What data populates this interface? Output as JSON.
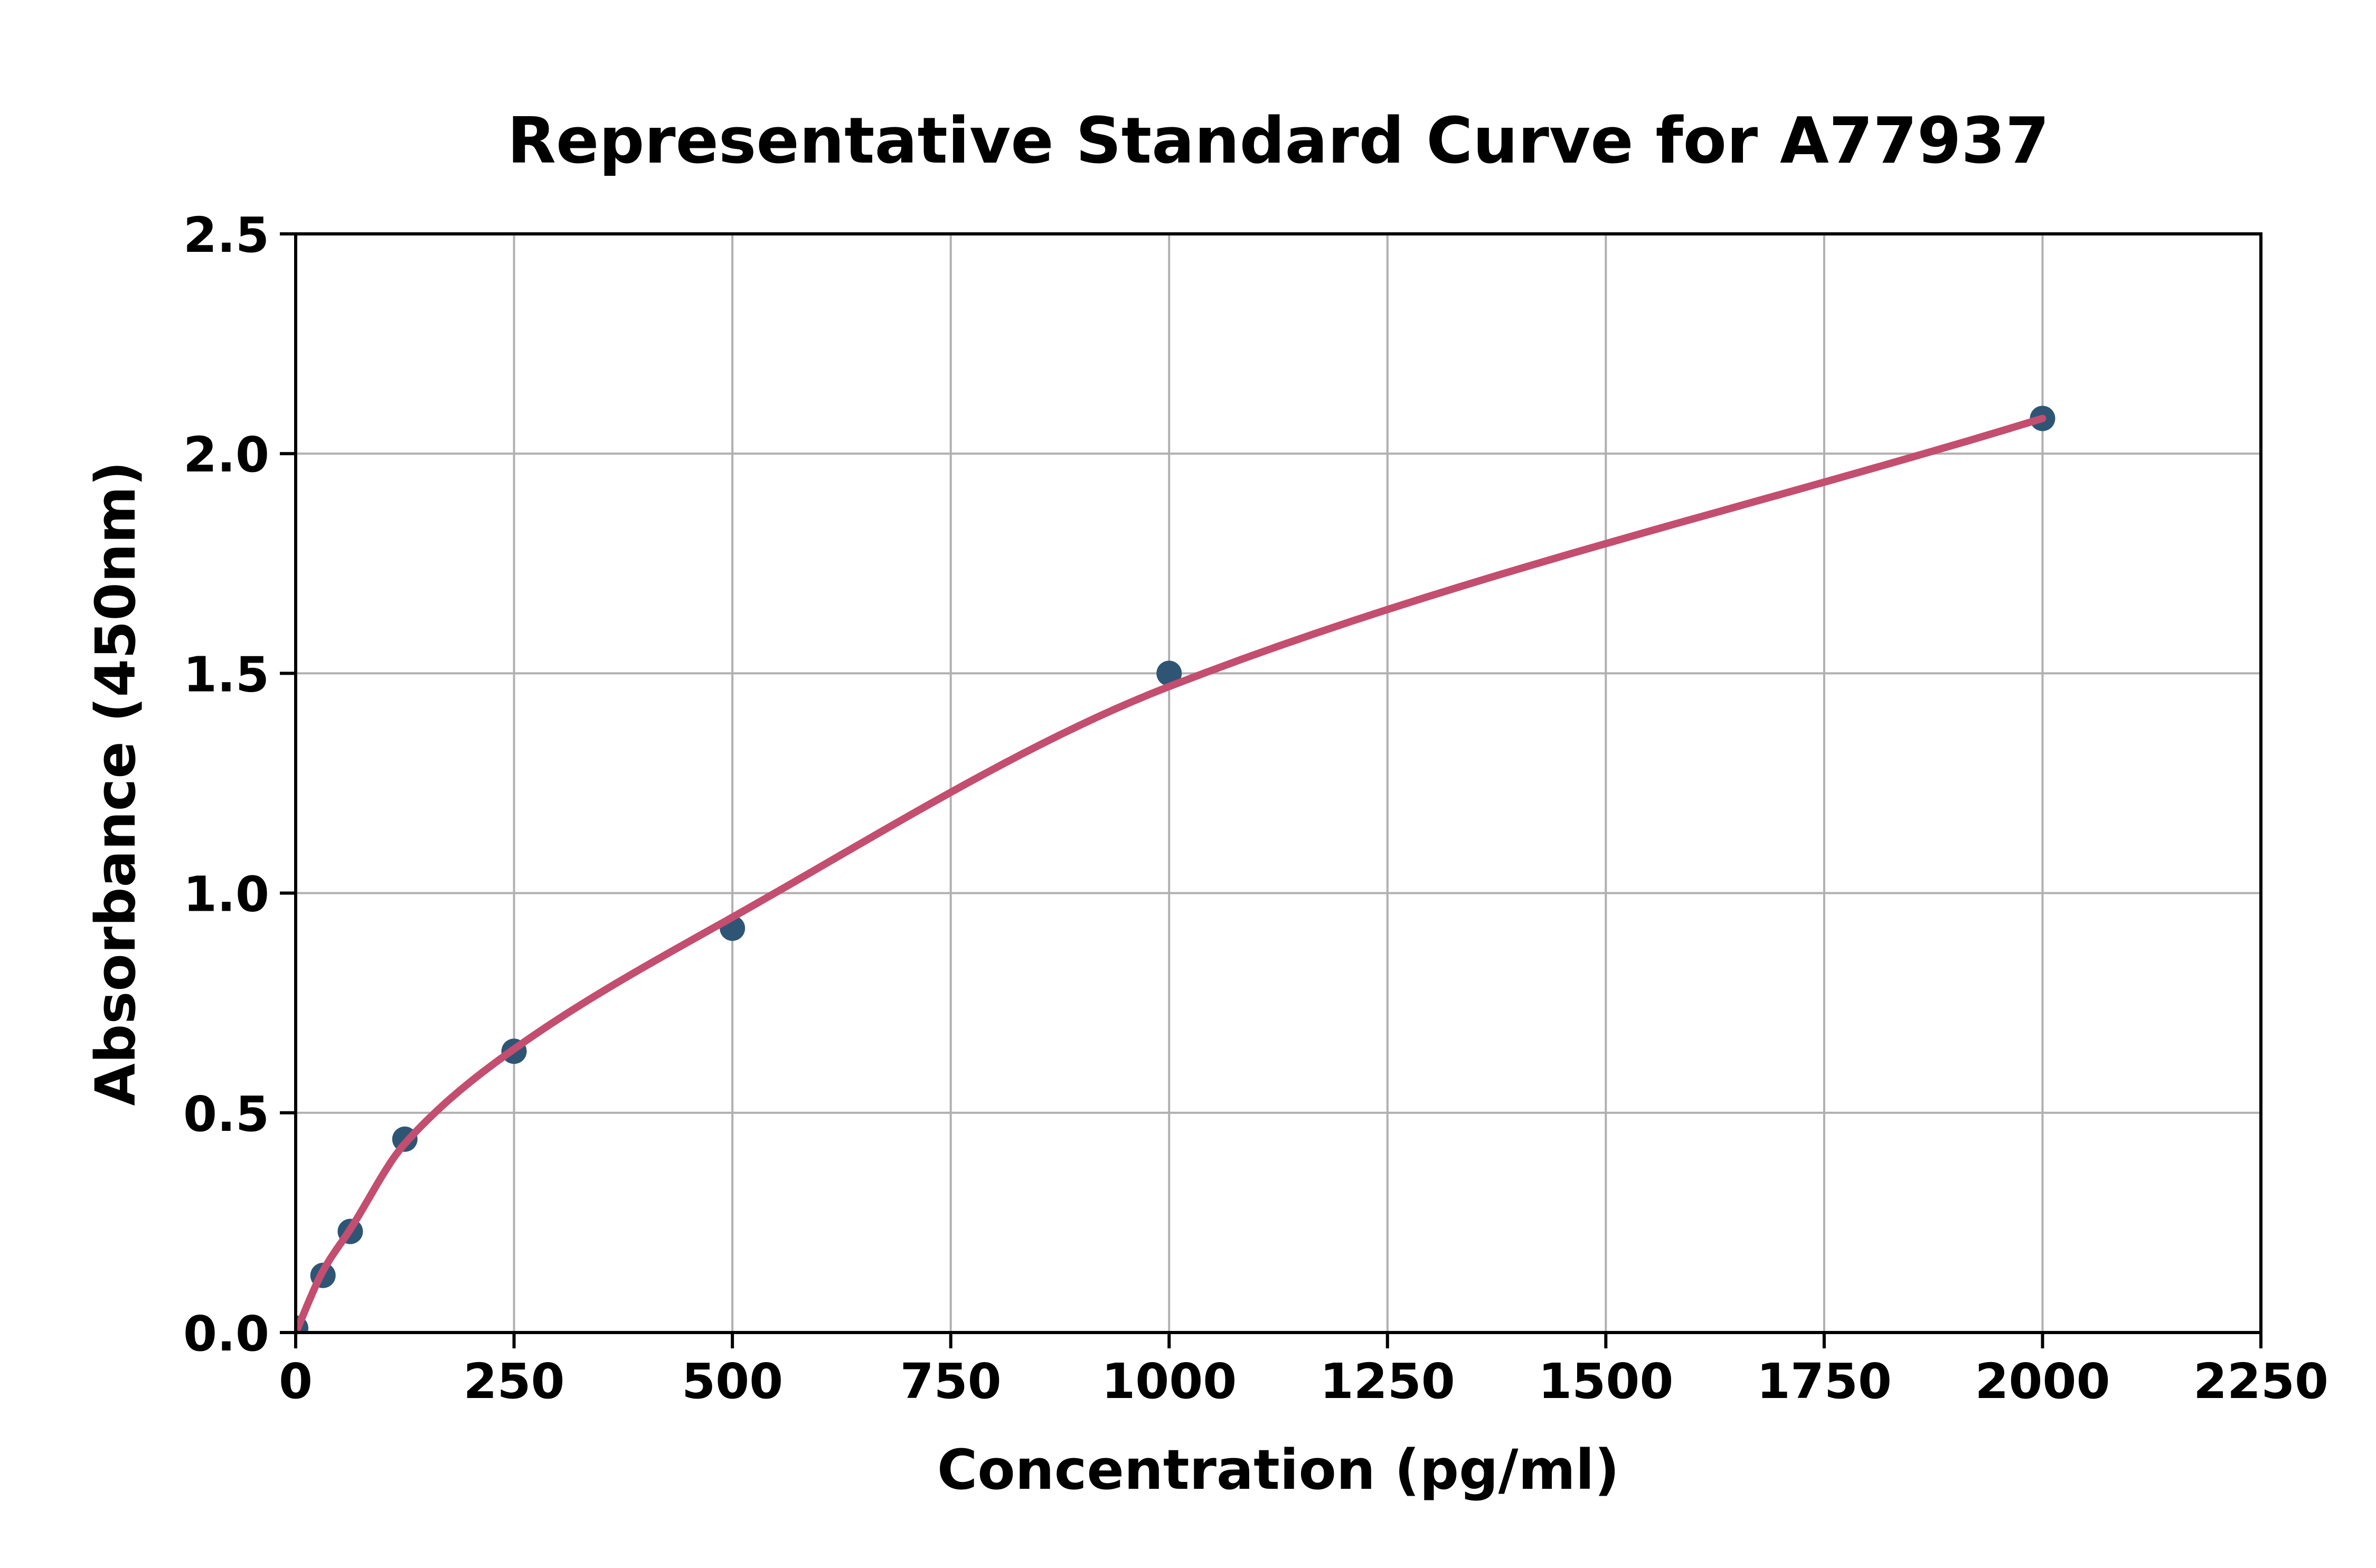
{
  "figure": {
    "background": "#FFFFFF"
  },
  "chart_data": {
    "type": "scatter",
    "title": "Representative Standard Curve for A77937",
    "xlabel": "Concentration (pg/ml)",
    "ylabel": "Absorbance (450nm)",
    "xlim": [
      0,
      2250
    ],
    "ylim": [
      0,
      2.5
    ],
    "x_ticks": [
      0,
      250,
      500,
      750,
      1000,
      1250,
      1500,
      1750,
      2000,
      2250
    ],
    "x_tick_labels": [
      "0",
      "250",
      "500",
      "750",
      "1000",
      "1250",
      "1500",
      "1750",
      "2000",
      "2250"
    ],
    "y_ticks": [
      0,
      0.5,
      1.0,
      1.5,
      2.0,
      2.5
    ],
    "y_tick_labels": [
      "0.0",
      "0.5",
      "1.0",
      "1.5",
      "2.0",
      "2.5"
    ],
    "grid": true,
    "grid_color": "#B0B0B0",
    "axis_color": "#000000",
    "legend": false,
    "series": [
      {
        "name": "standard-points",
        "type": "scatter",
        "marker": "circle",
        "color": "#2F5575",
        "points": [
          [
            0,
            0.01
          ],
          [
            31.25,
            0.13
          ],
          [
            62.5,
            0.23
          ],
          [
            125,
            0.44
          ],
          [
            250,
            0.64
          ],
          [
            500,
            0.92
          ],
          [
            1000,
            1.5
          ],
          [
            2000,
            2.08
          ]
        ]
      },
      {
        "name": "fit-curve",
        "type": "line",
        "color": "#C34E70",
        "points": [
          [
            0,
            0.0
          ],
          [
            31.25,
            0.14
          ],
          [
            62.5,
            0.235
          ],
          [
            125,
            0.43
          ],
          [
            250,
            0.645
          ],
          [
            500,
            0.945
          ],
          [
            1000,
            1.47
          ],
          [
            2000,
            2.08
          ]
        ]
      }
    ]
  }
}
